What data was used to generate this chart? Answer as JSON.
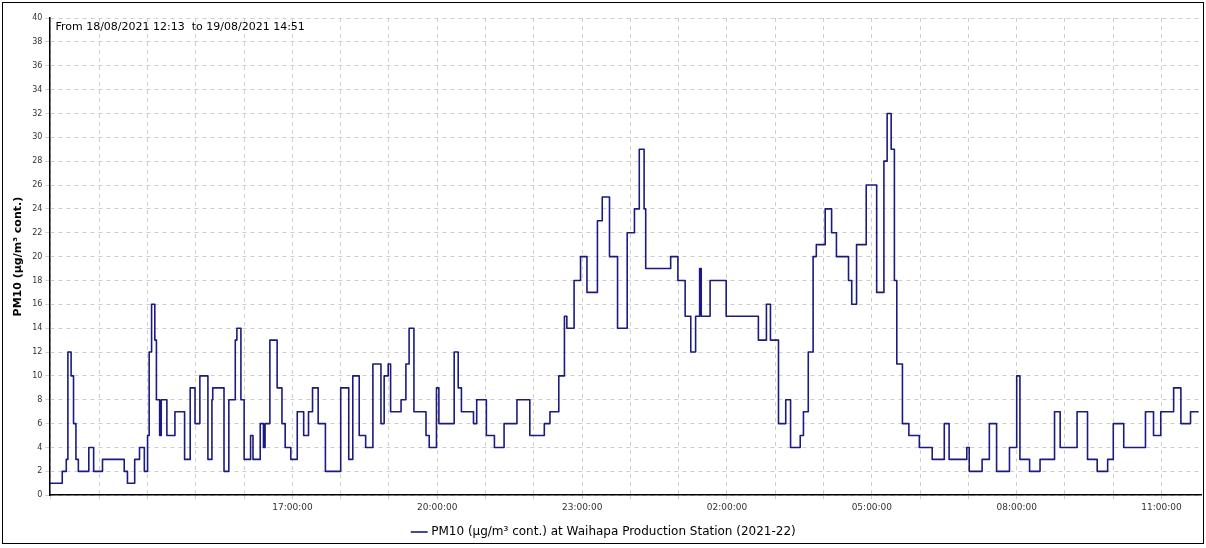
{
  "chart_data": {
    "type": "step",
    "title": "From 18/08/2021 12:13  to 19/08/2021 14:51",
    "ylabel": "PM10 (µg/m³ cont.)",
    "xlim": [
      "2021-08-18T11:58",
      "2021-08-19T11:49"
    ],
    "ylim": [
      0,
      40
    ],
    "xticks": [
      {
        "value": "2021-08-18T12:00",
        "label": null
      },
      {
        "value": "2021-08-18T13:00",
        "label": null
      },
      {
        "value": "2021-08-18T14:00",
        "label": null
      },
      {
        "value": "2021-08-18T15:00",
        "label": null
      },
      {
        "value": "2021-08-18T16:00",
        "label": null
      },
      {
        "value": "2021-08-18T17:00",
        "label": "17:00:00"
      },
      {
        "value": "2021-08-18T18:00",
        "label": null
      },
      {
        "value": "2021-08-18T19:00",
        "label": null
      },
      {
        "value": "2021-08-18T20:00",
        "label": "20:00:00"
      },
      {
        "value": "2021-08-18T21:00",
        "label": null
      },
      {
        "value": "2021-08-18T22:00",
        "label": null
      },
      {
        "value": "2021-08-18T23:00",
        "label": "23:00:00"
      },
      {
        "value": "2021-08-19T00:00",
        "label": null
      },
      {
        "value": "2021-08-19T01:00",
        "label": null
      },
      {
        "value": "2021-08-19T02:00",
        "label": "02:00:00"
      },
      {
        "value": "2021-08-19T03:00",
        "label": null
      },
      {
        "value": "2021-08-19T04:00",
        "label": null
      },
      {
        "value": "2021-08-19T05:00",
        "label": "05:00:00"
      },
      {
        "value": "2021-08-19T06:00",
        "label": null
      },
      {
        "value": "2021-08-19T07:00",
        "label": null
      },
      {
        "value": "2021-08-19T08:00",
        "label": "08:00:00"
      },
      {
        "value": "2021-08-19T09:00",
        "label": null
      },
      {
        "value": "2021-08-19T10:00",
        "label": null
      },
      {
        "value": "2021-08-19T11:00",
        "label": "11:00:00"
      }
    ],
    "yticks": [
      0,
      2,
      4,
      6,
      8,
      10,
      12,
      14,
      16,
      18,
      20,
      22,
      24,
      26,
      28,
      30,
      32,
      34,
      36,
      38,
      40
    ],
    "grid": true,
    "legend": "bottom",
    "line_style": "solid",
    "marker": "none",
    "series": [
      {
        "name": "PM10 (µg/m³ cont.) at Waihapa Production Station (2021-22)",
        "color": "#1a1a80",
        "x": [
          "2021-08-18T11:58",
          "2021-08-18T12:14",
          "2021-08-18T12:19",
          "2021-08-18T12:21",
          "2021-08-18T12:23",
          "2021-08-18T12:25",
          "2021-08-18T12:28",
          "2021-08-18T12:31",
          "2021-08-18T12:34",
          "2021-08-18T12:47",
          "2021-08-18T12:51",
          "2021-08-18T12:53",
          "2021-08-18T13:04",
          "2021-08-18T13:31",
          "2021-08-18T13:35",
          "2021-08-18T13:44",
          "2021-08-18T13:50",
          "2021-08-18T13:56",
          "2021-08-18T14:00",
          "2021-08-18T14:02",
          "2021-08-18T14:05",
          "2021-08-18T14:09",
          "2021-08-18T14:11",
          "2021-08-18T14:15",
          "2021-08-18T14:17",
          "2021-08-18T14:24",
          "2021-08-18T14:34",
          "2021-08-18T14:46",
          "2021-08-18T14:53",
          "2021-08-18T14:59",
          "2021-08-18T15:05",
          "2021-08-18T15:15",
          "2021-08-18T15:20",
          "2021-08-18T15:21",
          "2021-08-18T15:35",
          "2021-08-18T15:41",
          "2021-08-18T15:49",
          "2021-08-18T15:51",
          "2021-08-18T15:56",
          "2021-08-18T16:00",
          "2021-08-18T16:08",
          "2021-08-18T16:11",
          "2021-08-18T16:20",
          "2021-08-18T16:24",
          "2021-08-18T16:26",
          "2021-08-18T16:32",
          "2021-08-18T16:36",
          "2021-08-18T16:41",
          "2021-08-18T16:47",
          "2021-08-18T16:51",
          "2021-08-18T16:58",
          "2021-08-18T17:06",
          "2021-08-18T17:14",
          "2021-08-18T17:20",
          "2021-08-18T17:25",
          "2021-08-18T17:32",
          "2021-08-18T17:41",
          "2021-08-18T17:54",
          "2021-08-18T18:00",
          "2021-08-18T18:10",
          "2021-08-18T18:15",
          "2021-08-18T18:23",
          "2021-08-18T18:31",
          "2021-08-18T18:40",
          "2021-08-18T18:50",
          "2021-08-18T18:54",
          "2021-08-18T18:59",
          "2021-08-18T19:02",
          "2021-08-18T19:09",
          "2021-08-18T19:15",
          "2021-08-18T19:21",
          "2021-08-18T19:25",
          "2021-08-18T19:31",
          "2021-08-18T19:46",
          "2021-08-18T19:50",
          "2021-08-18T19:59",
          "2021-08-18T20:02",
          "2021-08-18T20:21",
          "2021-08-18T20:26",
          "2021-08-18T20:30",
          "2021-08-18T20:45",
          "2021-08-18T20:49",
          "2021-08-18T21:01",
          "2021-08-18T21:11",
          "2021-08-18T21:23",
          "2021-08-18T21:39",
          "2021-08-18T21:55",
          "2021-08-18T22:13",
          "2021-08-18T22:20",
          "2021-08-18T22:31",
          "2021-08-18T22:38",
          "2021-08-18T22:41",
          "2021-08-18T22:50",
          "2021-08-18T22:58",
          "2021-08-18T23:06",
          "2021-08-18T23:19",
          "2021-08-18T23:25",
          "2021-08-18T23:34",
          "2021-08-18T23:44",
          "2021-08-18T23:56",
          "2021-08-19T00:05",
          "2021-08-19T00:11",
          "2021-08-19T00:17",
          "2021-08-19T00:19",
          "2021-08-19T00:43",
          "2021-08-19T00:50",
          "2021-08-19T00:59",
          "2021-08-19T01:08",
          "2021-08-19T01:15",
          "2021-08-19T01:21",
          "2021-08-19T01:26",
          "2021-08-19T01:28",
          "2021-08-19T01:39",
          "2021-08-19T01:49",
          "2021-08-19T01:59",
          "2021-08-19T02:10",
          "2021-08-19T02:30",
          "2021-08-19T02:39",
          "2021-08-19T02:49",
          "2021-08-19T02:54",
          "2021-08-19T03:04",
          "2021-08-19T03:13",
          "2021-08-19T03:19",
          "2021-08-19T03:31",
          "2021-08-19T03:35",
          "2021-08-19T03:41",
          "2021-08-19T03:47",
          "2021-08-19T03:51",
          "2021-08-19T04:02",
          "2021-08-19T04:10",
          "2021-08-19T04:16",
          "2021-08-19T04:31",
          "2021-08-19T04:35",
          "2021-08-19T04:41",
          "2021-08-19T04:53",
          "2021-08-19T05:00",
          "2021-08-19T05:06",
          "2021-08-19T05:15",
          "2021-08-19T05:19",
          "2021-08-19T05:24",
          "2021-08-19T05:28",
          "2021-08-19T05:31",
          "2021-08-19T05:38",
          "2021-08-19T05:46",
          "2021-08-19T05:59",
          "2021-08-19T06:15",
          "2021-08-19T06:30",
          "2021-08-19T06:36",
          "2021-08-19T06:58",
          "2021-08-19T07:01",
          "2021-08-19T07:17",
          "2021-08-19T07:26",
          "2021-08-19T07:35",
          "2021-08-19T07:51",
          "2021-08-19T08:00",
          "2021-08-19T08:04",
          "2021-08-19T08:16",
          "2021-08-19T08:29",
          "2021-08-19T08:47",
          "2021-08-19T08:54",
          "2021-08-19T09:15",
          "2021-08-19T09:28",
          "2021-08-19T09:40",
          "2021-08-19T09:53",
          "2021-08-19T10:00",
          "2021-08-19T10:13",
          "2021-08-19T10:25",
          "2021-08-19T10:40",
          "2021-08-19T10:50",
          "2021-08-19T10:59",
          "2021-08-19T11:15",
          "2021-08-19T11:24",
          "2021-08-19T11:36",
          "2021-08-19T11:46"
        ],
        "values": [
          1,
          2,
          3,
          12,
          12,
          10,
          6,
          3,
          2,
          4,
          4,
          2,
          3,
          2,
          1,
          3,
          4,
          2,
          5,
          12,
          16,
          13,
          8,
          5,
          8,
          5,
          7,
          3,
          9,
          6,
          10,
          3,
          8,
          9,
          2,
          8,
          13,
          14,
          8,
          3,
          5,
          3,
          6,
          4,
          6,
          13,
          13,
          9,
          6,
          4,
          3,
          7,
          5,
          7,
          9,
          6,
          2,
          2,
          9,
          3,
          10,
          5,
          4,
          11,
          6,
          10,
          11,
          7,
          7,
          8,
          11,
          14,
          7,
          5,
          4,
          9,
          6,
          12,
          9,
          7,
          6,
          8,
          5,
          4,
          6,
          8,
          5,
          6,
          7,
          10,
          15,
          14,
          18,
          20,
          17,
          23,
          25,
          20,
          14,
          22,
          24,
          29,
          24,
          19,
          19,
          20,
          18,
          15,
          12,
          15,
          19,
          15,
          18,
          18,
          15,
          15,
          15,
          13,
          16,
          13,
          6,
          8,
          4,
          5,
          7,
          12,
          20,
          21,
          24,
          22,
          20,
          18,
          16,
          21,
          26,
          26,
          17,
          28,
          32,
          29,
          18,
          11,
          6,
          5,
          4,
          3,
          6,
          3,
          4,
          2,
          3,
          6,
          2,
          4,
          10,
          3,
          2,
          3,
          7,
          4,
          7,
          3,
          2,
          3,
          6,
          4,
          4,
          7,
          5,
          7,
          9,
          6,
          7,
          7
        ]
      }
    ]
  }
}
